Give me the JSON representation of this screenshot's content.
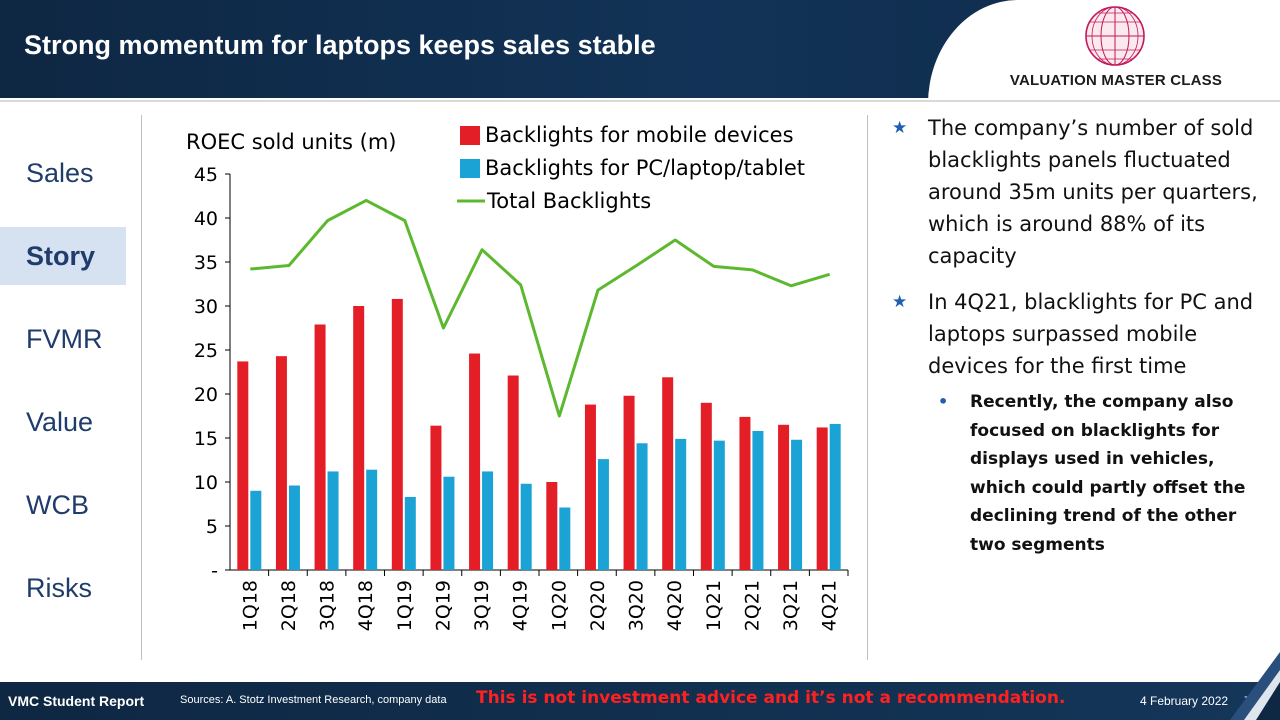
{
  "header": {
    "title": "Strong momentum for laptops keeps sales stable"
  },
  "logo": {
    "text": "VALUATION MASTER CLASS"
  },
  "nav": {
    "items": [
      {
        "label": "Sales",
        "active": false
      },
      {
        "label": "Story",
        "active": true
      },
      {
        "label": "FVMR",
        "active": false
      },
      {
        "label": "Value",
        "active": false
      },
      {
        "label": "WCB",
        "active": false
      },
      {
        "label": "Risks",
        "active": false
      }
    ]
  },
  "bullets": {
    "first": "The company’s number of sold blacklights panels fluctuated around 35m units per quarters, which is around 88% of its capacity",
    "second": "In 4Q21, blacklights for PC and laptops surpassed mobile devices for the first time",
    "sub": "Recently, the company also focused on blacklights for displays used in vehicles, which could partly offset the declining trend of the other two segments"
  },
  "footer": {
    "report": "VMC Student Report",
    "sources": "Sources: A. Stotz Investment Research, company data",
    "disclaimer": "This is not investment advice and it’s not a recommendation.",
    "date": "4 February 2022",
    "page": "7"
  },
  "colors": {
    "mobile": "#e41e26",
    "pc": "#1ba3d6",
    "total": "#5cb82e",
    "header": "#0e2743",
    "accent": "#1f3c6b"
  },
  "chart_data": {
    "type": "bar",
    "ylabel": "ROEC sold units (m)",
    "ylim": [
      0,
      45
    ],
    "yticks": [
      "-",
      "5",
      "10",
      "15",
      "20",
      "25",
      "30",
      "35",
      "40",
      "45"
    ],
    "categories": [
      "1Q18",
      "2Q18",
      "3Q18",
      "4Q18",
      "1Q19",
      "2Q19",
      "3Q19",
      "4Q19",
      "1Q20",
      "2Q20",
      "3Q20",
      "4Q20",
      "1Q21",
      "2Q21",
      "3Q21",
      "4Q21"
    ],
    "series": [
      {
        "name": "Backlights for mobile devices",
        "kind": "bar",
        "values": [
          23.7,
          24.3,
          27.9,
          30.0,
          30.8,
          16.4,
          24.6,
          22.1,
          10.0,
          18.8,
          19.8,
          21.9,
          19.0,
          17.4,
          16.5,
          16.2
        ]
      },
      {
        "name": "Backlights for PC/laptop/tablet",
        "kind": "bar",
        "values": [
          9.0,
          9.6,
          11.2,
          11.4,
          8.3,
          10.6,
          11.2,
          9.8,
          7.1,
          12.6,
          14.4,
          14.9,
          14.7,
          15.8,
          14.8,
          16.6
        ]
      },
      {
        "name": "Total Backlights",
        "kind": "line",
        "values": [
          34.2,
          34.6,
          39.7,
          42.0,
          39.7,
          27.5,
          36.4,
          32.4,
          17.5,
          31.8,
          34.6,
          37.5,
          34.5,
          34.1,
          32.3,
          33.6
        ]
      }
    ],
    "legend_position": "top"
  }
}
